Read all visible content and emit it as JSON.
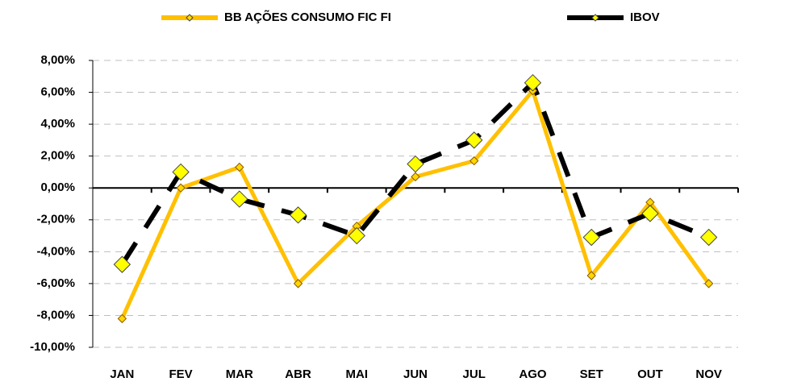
{
  "chart_data": {
    "type": "line",
    "categories": [
      "JAN",
      "FEV",
      "MAR",
      "ABR",
      "MAI",
      "JUN",
      "JUL",
      "AGO",
      "SET",
      "OUT",
      "NOV"
    ],
    "series": [
      {
        "name": "BB AÇÕES CONSUMO FIC FI",
        "color": "#ffc000",
        "marker_color": "#ffd700",
        "values": [
          -8.2,
          0.0,
          1.3,
          -6.0,
          -2.4,
          0.7,
          1.7,
          6.1,
          -5.5,
          -0.9,
          -6.0
        ]
      },
      {
        "name": "IBOV",
        "color": "#000000",
        "marker_color": "#ffff00",
        "values": [
          -4.8,
          1.0,
          -0.7,
          -1.7,
          -3.0,
          1.5,
          3.0,
          6.6,
          -3.1,
          -1.6,
          -3.1
        ]
      }
    ],
    "ylim": [
      -10,
      8
    ],
    "yticks": [
      {
        "value": -10,
        "label": "-10,00%"
      },
      {
        "value": -8,
        "label": "-8,00%"
      },
      {
        "value": -6,
        "label": "-6,00%"
      },
      {
        "value": -4,
        "label": "-4,00%"
      },
      {
        "value": -2,
        "label": "-2,00%"
      },
      {
        "value": 0,
        "label": "0,00%"
      },
      {
        "value": 2,
        "label": "2,00%"
      },
      {
        "value": 4,
        "label": "4,00%"
      },
      {
        "value": 6,
        "label": "6,00%"
      },
      {
        "value": 8,
        "label": "8,00%"
      }
    ],
    "grid": true,
    "legend": "top"
  }
}
